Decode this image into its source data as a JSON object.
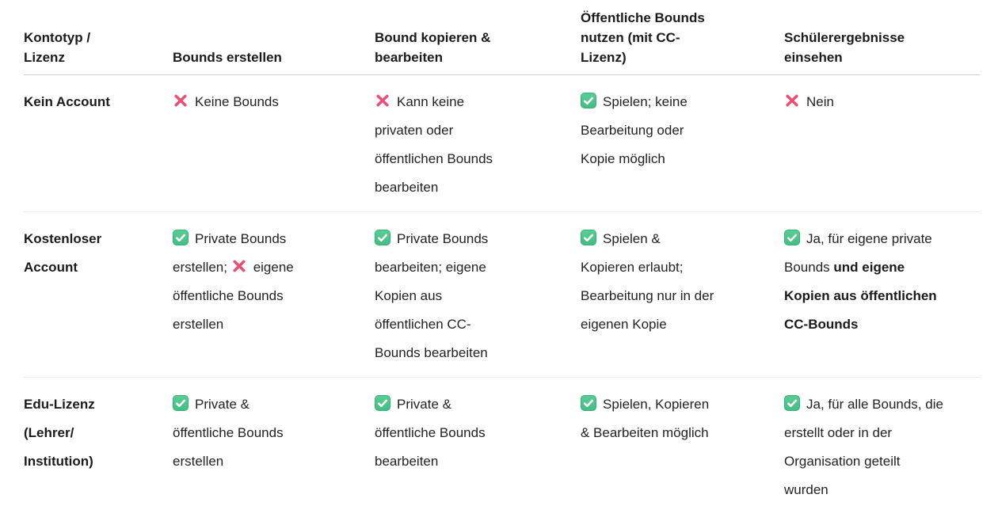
{
  "page": {
    "background": "#ffffff"
  },
  "colors": {
    "text": "#222222",
    "heading_text": "#1b1b1b",
    "check_green": "#4cc38a",
    "check_green_border": "#35b277",
    "cross_pink": "#ee4d74",
    "header_divider": "#d0d0d0",
    "row_divider": "#ececec"
  },
  "icons": {
    "check": "check-icon",
    "cross": "cross-icon"
  },
  "table": {
    "columns": [
      {
        "id": "kontotyp",
        "label": "Kontotyp /\nLizenz"
      },
      {
        "id": "erstellen",
        "label": "Bounds erstellen"
      },
      {
        "id": "kopieren",
        "label": "Bound kopieren &\nbearbeiten"
      },
      {
        "id": "nutzen",
        "label": "Öffentliche Bounds\nnutzen (mit CC-\nLizenz)"
      },
      {
        "id": "ergebnisse",
        "label": "Schülerergebnisse\neinsehen"
      }
    ],
    "rows": [
      {
        "label": "Kein Account",
        "cells": [
          [
            {
              "icon": "cross"
            },
            {
              "text": "Keine Bounds"
            }
          ],
          [
            {
              "icon": "cross"
            },
            {
              "text": "Kann keine\nprivaten oder\nöffentlichen Bounds\nbearbeiten"
            }
          ],
          [
            {
              "icon": "check"
            },
            {
              "text": "Spielen; keine\nBearbeitung oder\nKopie möglich"
            }
          ],
          [
            {
              "icon": "cross"
            },
            {
              "text": "Nein"
            }
          ]
        ]
      },
      {
        "label": "Kostenloser\nAccount",
        "cells": [
          [
            {
              "icon": "check"
            },
            {
              "text": "Private Bounds\nerstellen; "
            },
            {
              "icon": "cross"
            },
            {
              "text": "eigene\nöffentliche Bounds\nerstellen"
            }
          ],
          [
            {
              "icon": "check"
            },
            {
              "text": "Private Bounds\nbearbeiten; eigene\nKopien aus\nöffentlichen CC-\nBounds bearbeiten"
            }
          ],
          [
            {
              "icon": "check"
            },
            {
              "text": "Spielen &\nKopieren erlaubt;\nBearbeitung nur in der\neigenen Kopie"
            }
          ],
          [
            {
              "icon": "check"
            },
            {
              "text": "Ja, für eigene private\nBounds "
            },
            {
              "text": "und eigene\nKopien aus öffentlichen\nCC-Bounds",
              "bold": true
            }
          ]
        ]
      },
      {
        "label": "Edu-Lizenz\n(Lehrer/\nInstitution)",
        "cells": [
          [
            {
              "icon": "check"
            },
            {
              "text": "Private &\nöffentliche Bounds\nerstellen"
            }
          ],
          [
            {
              "icon": "check"
            },
            {
              "text": "Private &\nöffentliche Bounds\nbearbeiten"
            }
          ],
          [
            {
              "icon": "check"
            },
            {
              "text": "Spielen, Kopieren\n& Bearbeiten möglich"
            }
          ],
          [
            {
              "icon": "check"
            },
            {
              "text": "Ja, für alle Bounds, die\nerstellt oder in der\nOrganisation geteilt\nwurden"
            }
          ]
        ]
      }
    ]
  }
}
